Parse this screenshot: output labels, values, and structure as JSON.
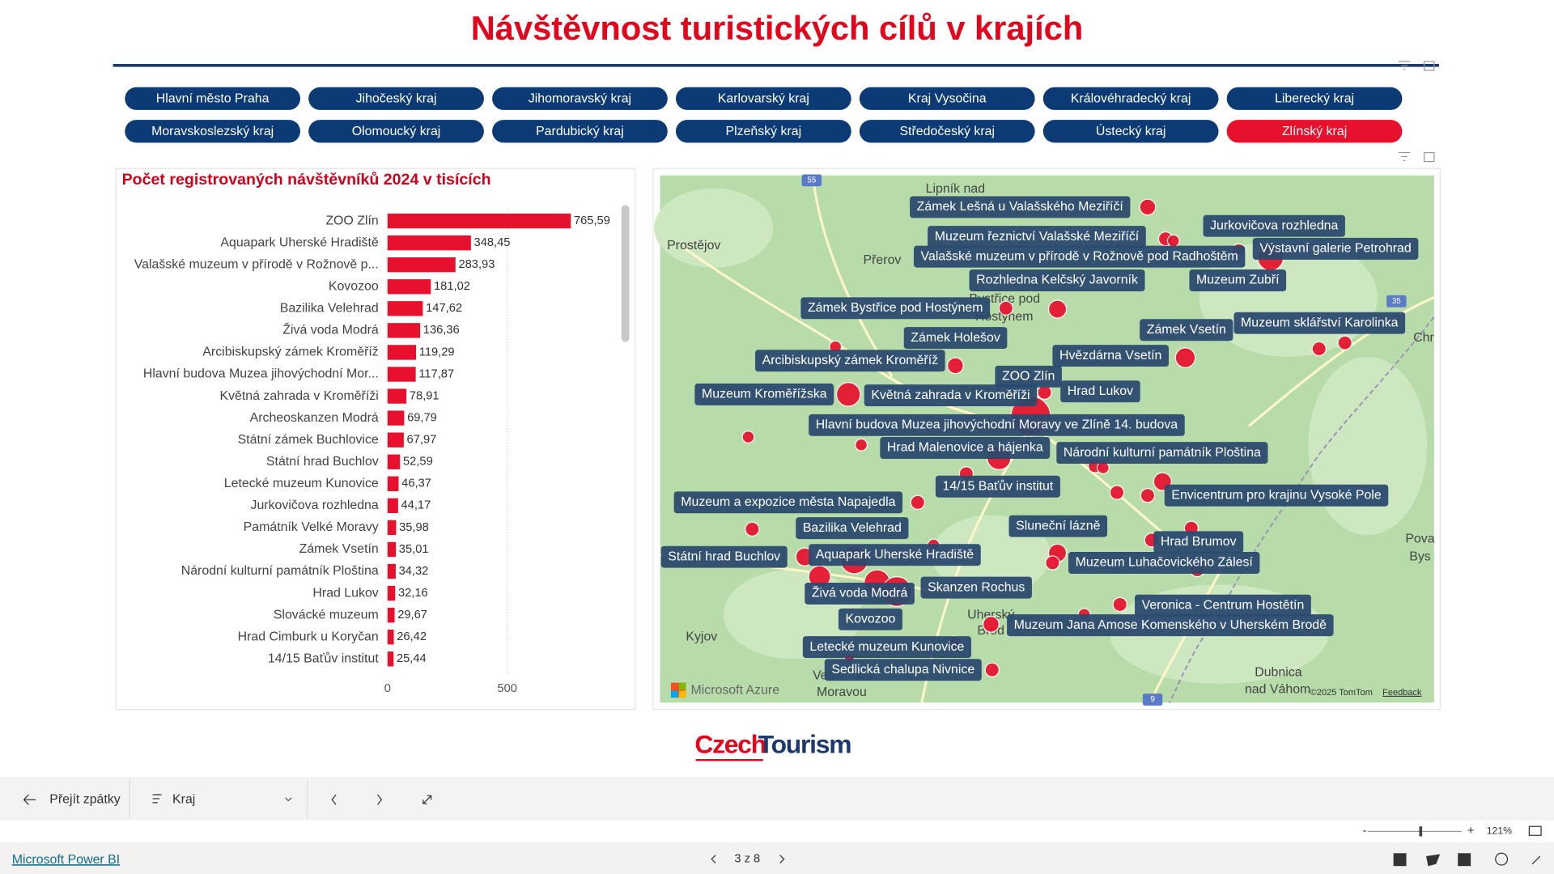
{
  "header": {
    "title": "Návštěvnost turistických cílů v krajích"
  },
  "buttons": [
    "Hlavní město Praha",
    "Jihočeský kraj",
    "Jihomoravský kraj",
    "Karlovarský kraj",
    "Kraj Vysočina",
    "Královéhradecký kraj",
    "Liberecký kraj",
    "Moravskoslezský kraj",
    "Olomoucký kraj",
    "Pardubický kraj",
    "Plzeňský kraj",
    "Středočeský kraj",
    "Ústecký kraj",
    "Zlínský kraj"
  ],
  "selected_button": 13,
  "chart_data": {
    "type": "bar",
    "orientation": "horizontal",
    "title": "Počet registrovaných návštěvníků 2024 v tisících",
    "categories": [
      "ZOO Zlín",
      "Aquapark Uherské Hradiště",
      "Valašské muzeum v přírodě v Rožnově p...",
      "Kovozoo",
      "Bazilika Velehrad",
      "Živá voda Modrá",
      "Arcibiskupský zámek Kroměříž",
      "Hlavní budova Muzea jihovýchodní Mor...",
      "Květná zahrada v Kroměříži",
      "Archeoskanzen Modrá",
      "Státní zámek Buchlovice",
      "Státní hrad Buchlov",
      "Letecké muzeum Kunovice",
      "Jurkovičova rozhledna",
      "Památník Velké Moravy",
      "Zámek Vsetín",
      "Národní kulturní památník Ploština",
      "Hrad Lukov",
      "Slovácké muzeum",
      "Hrad Cimburk u Koryčan",
      "14/15 Baťův institut"
    ],
    "values": [
      765.59,
      348.45,
      283.93,
      181.02,
      147.62,
      136.36,
      119.29,
      117.87,
      78.91,
      69.79,
      67.97,
      52.59,
      46.37,
      44.17,
      35.98,
      35.01,
      34.32,
      32.16,
      29.67,
      26.42,
      25.44
    ],
    "value_labels": [
      "765,59",
      "348,45",
      "283,93",
      "181,02",
      "147,62",
      "136,36",
      "119,29",
      "117,87",
      "78,91",
      "69,79",
      "67,97",
      "52,59",
      "46,37",
      "44,17",
      "35,98",
      "35,01",
      "34,32",
      "32,16",
      "29,67",
      "26,42",
      "25,44"
    ],
    "color": "#e8112d",
    "xlim": [
      0,
      1000
    ],
    "xticks": [
      0,
      500
    ],
    "grid": true
  },
  "map": {
    "labels": [
      "Zámek Lešná u Valašského Meziříčí",
      "Jurkovičova rozhledna",
      "Muzeum řeznictví Valašské Meziříčí",
      "Valašské muzeum v přírodě v Rožnově pod Radhoštěm",
      "Výstavní galerie Petrohrad",
      "Rozhledna Kelčský Javorník",
      "Muzeum Zubří",
      "Zámek Bystřice pod Hostýnem",
      "Zámek Vsetín",
      "Muzeum sklářství Karolinka",
      "Zámek Holešov",
      "Hvězdárna Vsetín",
      "Arcibiskupský zámek Kroměříž",
      "ZOO Zlín",
      "Hrad Lukov",
      "Muzeum Kroměřížska",
      "Květná zahrada v Kroměříži",
      "Hlavní budova Muzea jihovýchodní Moravy ve Zlíně 14. budova",
      "Hrad Malenovice a hájenka",
      "Národní kulturní památník Ploština",
      "14/15 Baťův institut",
      "Envicentrum pro krajinu Vysoké Pole",
      "Muzeum a expozice města Napajedla",
      "Bazilika Velehrad",
      "Sluneční lázně",
      "Hrad Brumov",
      "Státní hrad Buchlov",
      "Aquapark Uherské Hradiště",
      "Muzeum Luhačovického Zálesí",
      "Skanzen Rochus",
      "Živá voda Modrá",
      "Veronica - Centrum Hostětín",
      "Kovozoo",
      "Muzeum Jana Amose Komenského v Uherském Brodě",
      "Letecké muzeum Kunovice",
      "Sedlická chalupa Nivnice"
    ],
    "places": [
      "Lipník nad",
      "Prostějov",
      "Přerov",
      "Bystřice pod",
      "Hostýnem",
      "Kyjov",
      "Uherský",
      "Brod",
      "Veselí nad",
      "Moravou",
      "Dubnica",
      "nad Váhom",
      "Pova",
      "Bys",
      "Chr"
    ],
    "road_numbers": [
      "55",
      "35",
      "9"
    ],
    "provider": "Microsoft Azure",
    "copyright": "©2025 TomTom",
    "feedback": "Feedback"
  },
  "logo": {
    "czech": "Czech",
    "tourism": "Tourism"
  },
  "toolbar": {
    "back": "Přejít zpátky",
    "dropdown": "Kraj",
    "zoom": "121%"
  },
  "footer": {
    "brand": "Microsoft Power BI",
    "page": "3 z 8"
  }
}
